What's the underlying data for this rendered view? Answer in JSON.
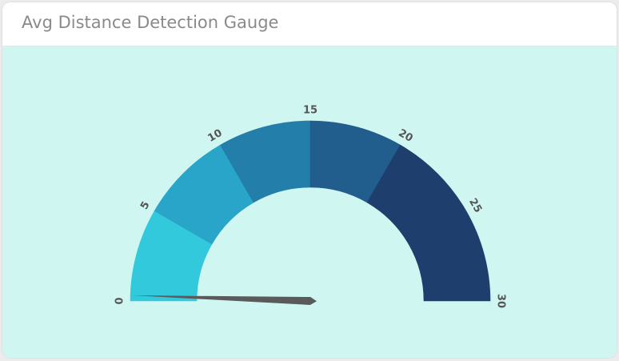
{
  "card": {
    "title": "Avg Distance Detection Gauge"
  },
  "colors": {
    "background": "#d0f6f1",
    "needle": "#5a5a5a",
    "tick_label": "#555555"
  },
  "chart_data": {
    "type": "gauge",
    "title": "Avg Distance Detection Gauge",
    "min": 0,
    "max": 30,
    "value": 0.3,
    "ticks": [
      "0",
      "5",
      "10",
      "15",
      "20",
      "25",
      "30"
    ],
    "bands": [
      {
        "from": 0,
        "to": 5,
        "color": "#33c9dc"
      },
      {
        "from": 5,
        "to": 10,
        "color": "#28a5c9"
      },
      {
        "from": 10,
        "to": 15,
        "color": "#237ea9"
      },
      {
        "from": 15,
        "to": 20,
        "color": "#215d8d"
      },
      {
        "from": 20,
        "to": 25,
        "color": "#1e3f6e"
      },
      {
        "from": 25,
        "to": 30,
        "color": "#1e3f6e"
      }
    ]
  }
}
